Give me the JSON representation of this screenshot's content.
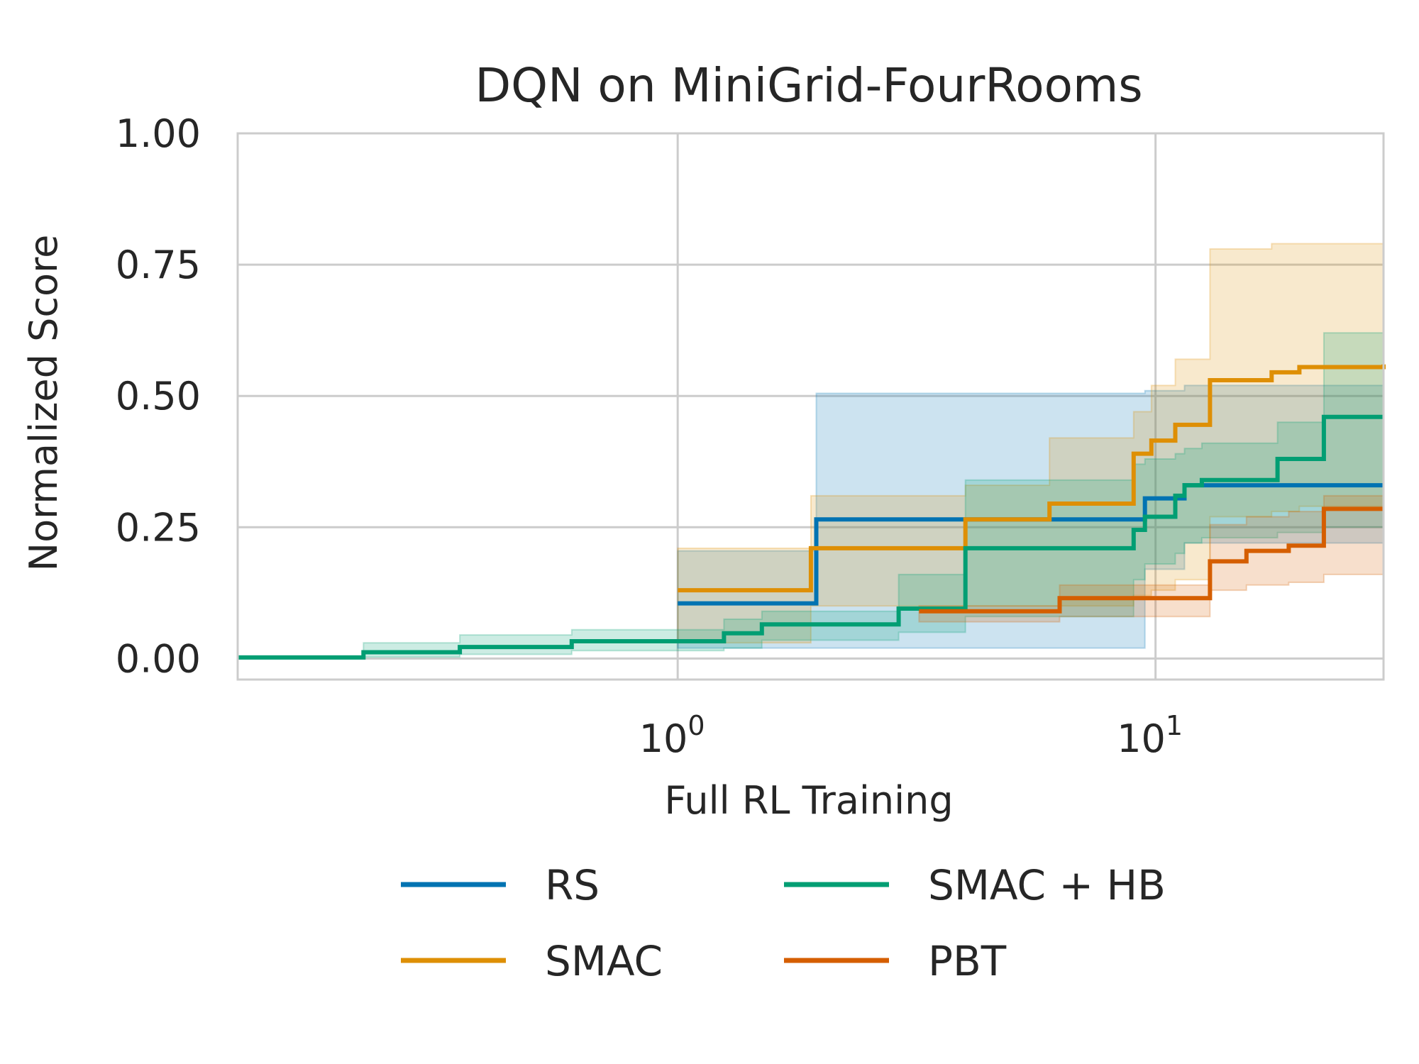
{
  "chart_data": {
    "type": "line",
    "title": "DQN on MiniGrid-FourRooms",
    "xlabel": "Full RL Training",
    "ylabel": "Normalized Score",
    "xscale": "log",
    "xlim": [
      0.12,
      30
    ],
    "ylim": [
      -0.04,
      1.0
    ],
    "xticks": [
      {
        "value": 1,
        "base": "10",
        "exp": "0"
      },
      {
        "value": 10,
        "base": "10",
        "exp": "1"
      }
    ],
    "yticks": [
      {
        "value": 0.0,
        "label": "0.00"
      },
      {
        "value": 0.25,
        "label": "0.25"
      },
      {
        "value": 0.5,
        "label": "0.50"
      },
      {
        "value": 0.75,
        "label": "0.75"
      },
      {
        "value": 1.0,
        "label": "1.00"
      }
    ],
    "grid": true,
    "legend": {
      "position": "bottom",
      "columns": 2
    },
    "series": [
      {
        "name": "RS",
        "color": "#0173b2",
        "x": [
          1.0,
          1.95,
          9.5,
          11.5,
          30
        ],
        "y": [
          0.105,
          0.265,
          0.305,
          0.33,
          0.33
        ],
        "lower": [
          0.02,
          0.02,
          0.17,
          0.22,
          0.21
        ],
        "upper": [
          0.205,
          0.505,
          0.51,
          0.52,
          0.52
        ]
      },
      {
        "name": "SMAC",
        "color": "#de8f05",
        "x": [
          1.0,
          1.9,
          4.0,
          6.0,
          9.0,
          9.8,
          11.0,
          13.0,
          17.5,
          20.0,
          30
        ],
        "y": [
          0.13,
          0.21,
          0.265,
          0.295,
          0.39,
          0.415,
          0.445,
          0.53,
          0.545,
          0.555,
          0.56
        ],
        "lower": [
          0.03,
          0.1,
          0.1,
          0.1,
          0.12,
          0.13,
          0.15,
          0.27,
          0.28,
          0.29,
          0.31
        ],
        "upper": [
          0.21,
          0.31,
          0.33,
          0.42,
          0.47,
          0.52,
          0.57,
          0.78,
          0.79,
          0.79,
          0.8
        ]
      },
      {
        "name": "SMAC + HB",
        "color": "#029e73",
        "x": [
          0.12,
          0.22,
          0.35,
          0.6,
          1.25,
          1.5,
          2.9,
          4.0,
          9.0,
          9.5,
          11.0,
          11.5,
          12.5,
          18.0,
          22.5,
          30
        ],
        "y": [
          0.002,
          0.012,
          0.022,
          0.033,
          0.048,
          0.065,
          0.095,
          0.21,
          0.245,
          0.27,
          0.31,
          0.33,
          0.34,
          0.38,
          0.46,
          0.46
        ],
        "lower": [
          0.0,
          0.003,
          0.008,
          0.015,
          0.02,
          0.035,
          0.05,
          0.08,
          0.15,
          0.18,
          0.2,
          0.22,
          0.23,
          0.24,
          0.25,
          0.26
        ],
        "upper": [
          0.005,
          0.03,
          0.045,
          0.055,
          0.075,
          0.09,
          0.16,
          0.34,
          0.37,
          0.38,
          0.39,
          0.4,
          0.41,
          0.45,
          0.62,
          0.63
        ]
      },
      {
        "name": "PBT",
        "color": "#d55e00",
        "x": [
          3.2,
          6.3,
          13.0,
          15.5,
          19.0,
          22.5,
          30
        ],
        "y": [
          0.09,
          0.115,
          0.185,
          0.205,
          0.215,
          0.285,
          0.285
        ],
        "lower": [
          0.07,
          0.08,
          0.13,
          0.14,
          0.145,
          0.16,
          0.17
        ],
        "upper": [
          0.1,
          0.14,
          0.255,
          0.27,
          0.28,
          0.31,
          0.32
        ]
      }
    ]
  }
}
